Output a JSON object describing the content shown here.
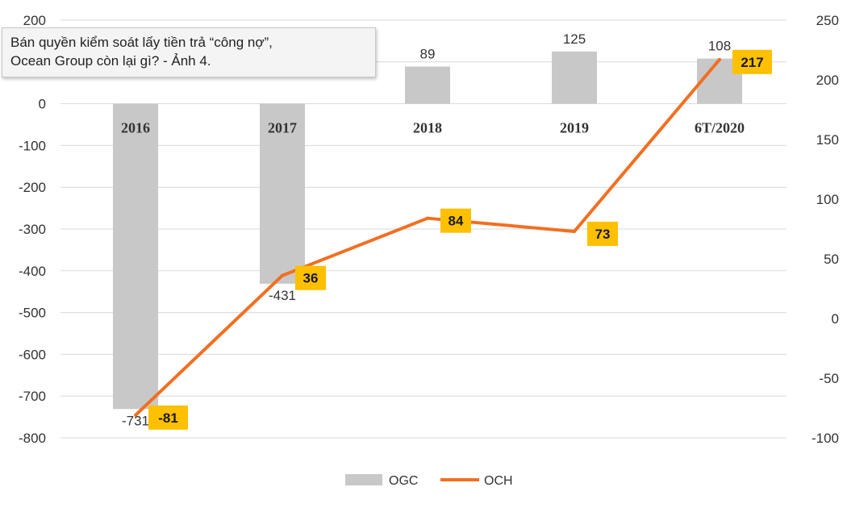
{
  "tooltip": {
    "line1": "Bán quyền kiểm soát lấy tiền trả “công nợ”,",
    "line2": "Ocean Group còn lại gì? - Ảnh 4."
  },
  "chart_data": {
    "type": "bar+line",
    "categories": [
      "2016",
      "2017",
      "2018",
      "2019",
      "6T/2020"
    ],
    "series": [
      {
        "name": "OGC",
        "type": "bar",
        "axis": "left",
        "values": [
          -731,
          -431,
          89,
          125,
          108
        ],
        "color": "#c8c8c8"
      },
      {
        "name": "OCH",
        "type": "line",
        "axis": "right",
        "values": [
          -81,
          36,
          84,
          73,
          217
        ],
        "color": "#f26f21"
      }
    ],
    "y_left": {
      "min": -800,
      "max": 200,
      "ticks": [
        200,
        100,
        0,
        -100,
        -200,
        -300,
        -400,
        -500,
        -600,
        -700,
        -800
      ]
    },
    "y_right": {
      "min": -100,
      "max": 250,
      "ticks": [
        250,
        200,
        150,
        100,
        50,
        0,
        -50,
        -100
      ]
    },
    "grid": true,
    "legend_position": "bottom",
    "line_label_bg": "#ffc000"
  }
}
